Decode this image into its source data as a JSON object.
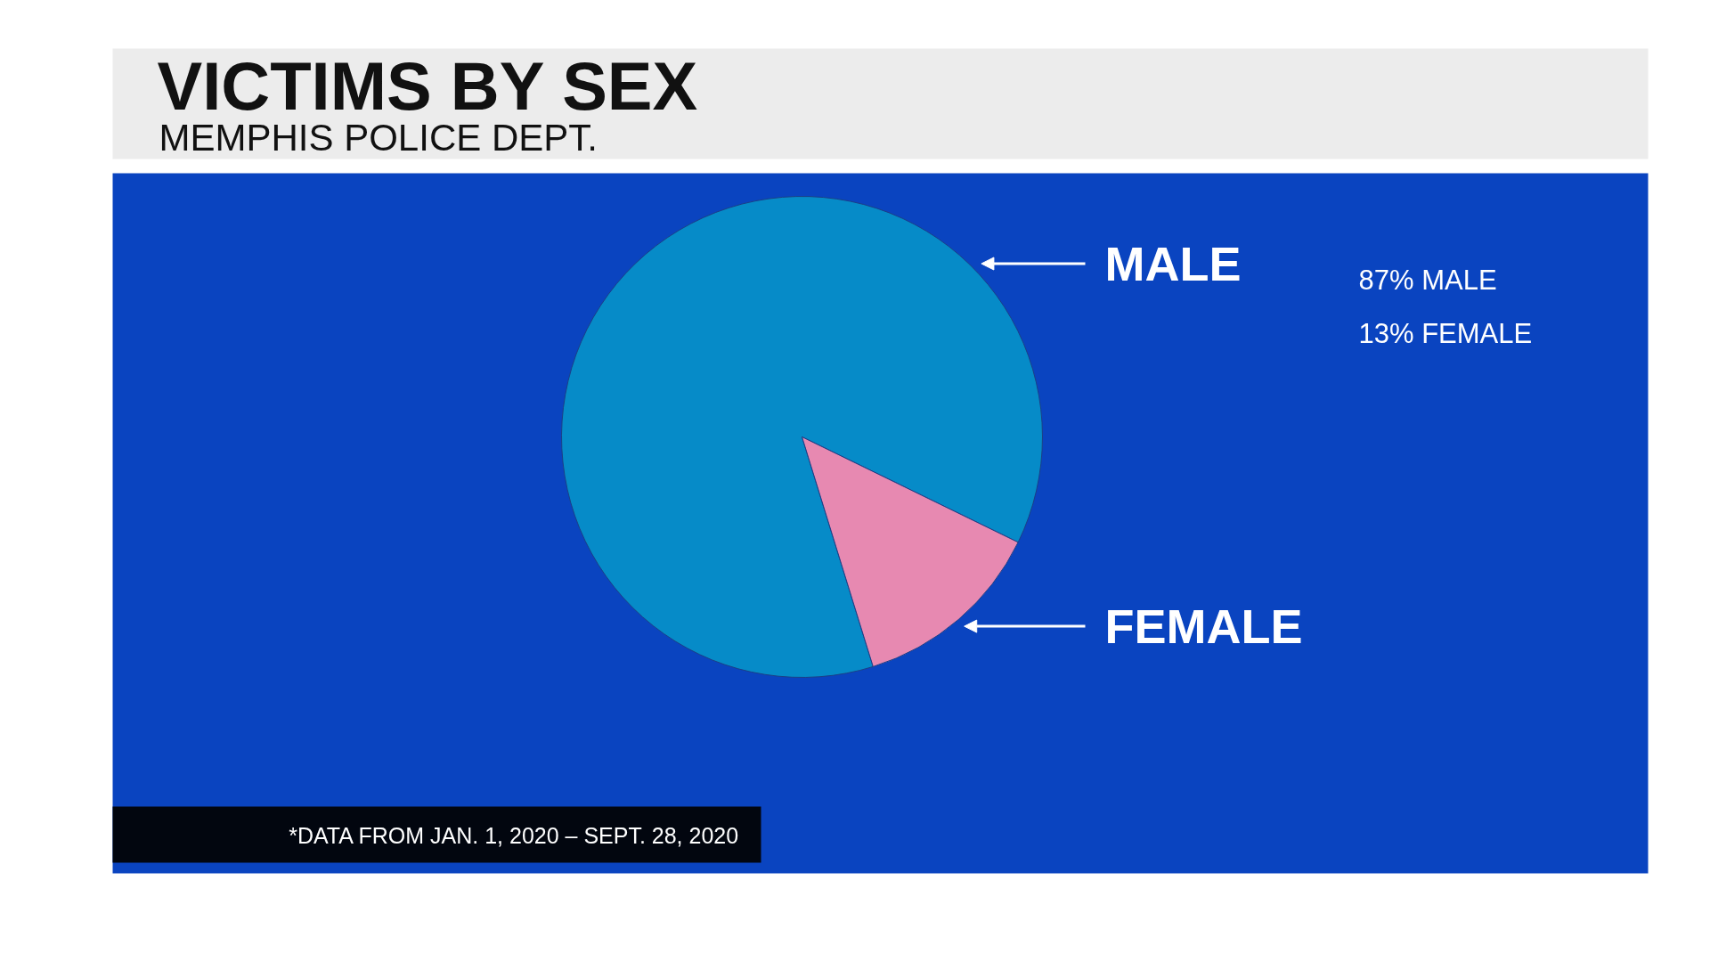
{
  "chart_data": {
    "type": "pie",
    "title": "VICTIMS BY SEX",
    "subtitle": "MEMPHIS POLICE DEPT.",
    "categories": [
      "MALE",
      "FEMALE"
    ],
    "values": [
      87,
      13
    ],
    "colors": [
      "#068bc8",
      "#e789b1"
    ],
    "annotations": [
      "87% MALE",
      "13% FEMALE",
      "*DATA FROM JAN. 1, 2020 – SEPT. 28, 2020"
    ]
  }
}
